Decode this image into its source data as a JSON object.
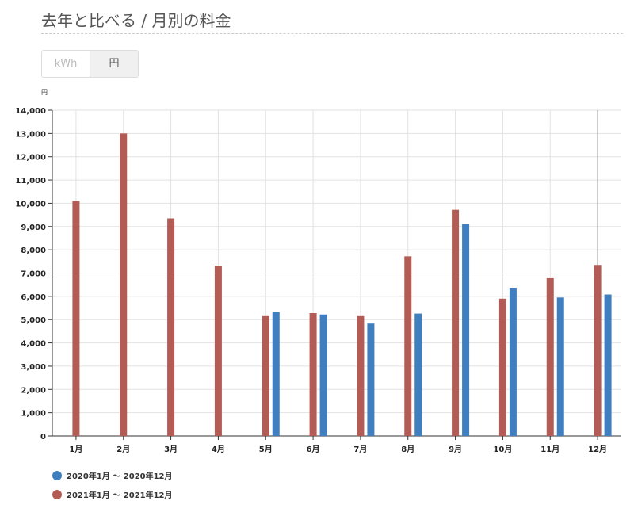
{
  "header": {
    "title": "去年と比べる / 月別の料金"
  },
  "toggle": {
    "kwh": "kWh",
    "yen": "円",
    "selected": "円"
  },
  "chart_data": {
    "type": "bar",
    "ylabel": "円",
    "ylim": [
      0,
      14000
    ],
    "yticks": [
      "0",
      "1,000",
      "2,000",
      "3,000",
      "4,000",
      "5,000",
      "6,000",
      "7,000",
      "8,000",
      "9,000",
      "10,000",
      "11,000",
      "12,000",
      "13,000",
      "14,000"
    ],
    "categories": [
      "1月",
      "2月",
      "3月",
      "4月",
      "5月",
      "6月",
      "7月",
      "8月",
      "9月",
      "10月",
      "11月",
      "12月"
    ],
    "grid": true,
    "legend_placement": "bottom-left",
    "series": [
      {
        "name": "2021年1月 〜 2021年12月",
        "color": "#b35c55",
        "values": [
          10100,
          13000,
          9350,
          7320,
          5150,
          5280,
          5150,
          7720,
          9720,
          5900,
          6780,
          7350
        ]
      },
      {
        "name": "2020年1月 〜 2020年12月",
        "color": "#3f7fbf",
        "values": [
          null,
          null,
          null,
          null,
          5330,
          5220,
          4830,
          5260,
          9100,
          6370,
          5950,
          6080
        ]
      }
    ]
  }
}
